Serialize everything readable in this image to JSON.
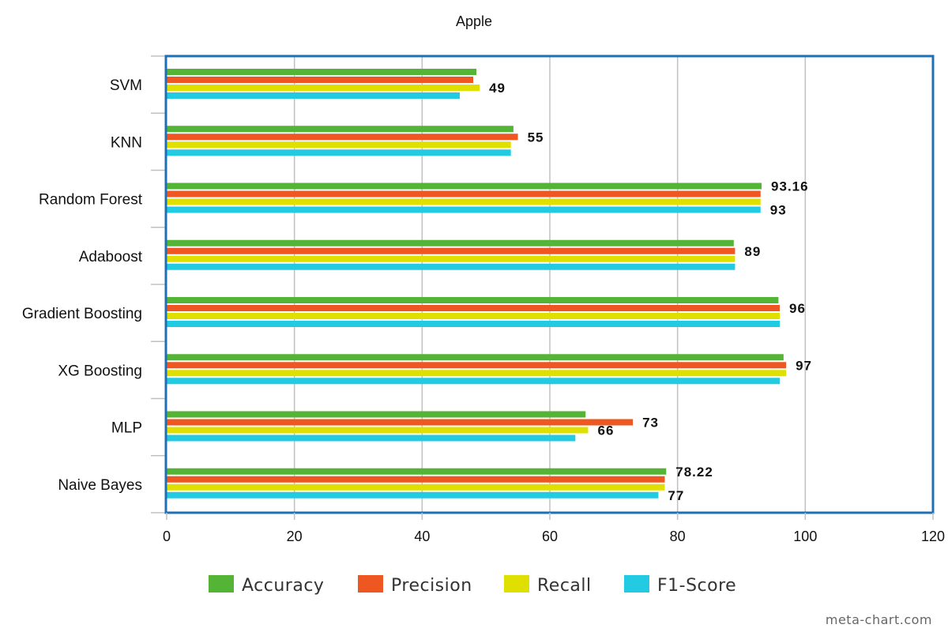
{
  "chart_data": {
    "type": "bar",
    "orientation": "horizontal",
    "title": "Apple",
    "categories": [
      "SVM",
      "KNN",
      "Random Forest",
      "Adaboost",
      "Gradient Boosting",
      "XG Boosting",
      "MLP",
      "Naive Bayes"
    ],
    "series": [
      {
        "name": "Accuracy",
        "color": "#54b435",
        "values": [
          48.5,
          54.3,
          93.16,
          88.8,
          95.8,
          96.6,
          65.6,
          78.22
        ]
      },
      {
        "name": "Precision",
        "color": "#ee5622",
        "values": [
          48.0,
          55.0,
          93.0,
          89.0,
          96.0,
          97.0,
          73.0,
          78.0
        ]
      },
      {
        "name": "Recall",
        "color": "#dfe000",
        "values": [
          49.0,
          53.9,
          93.0,
          89.0,
          96.0,
          97.0,
          66.0,
          78.0
        ]
      },
      {
        "name": "F1-Score",
        "color": "#22cbe2",
        "values": [
          45.9,
          53.9,
          93.0,
          89.0,
          96.0,
          96.0,
          64.0,
          77.0
        ]
      }
    ],
    "data_labels": [
      {
        "category": "SVM",
        "series": "Recall",
        "text": "49"
      },
      {
        "category": "KNN",
        "series": "Precision",
        "text": "55"
      },
      {
        "category": "Random Forest",
        "series": "Accuracy",
        "text": "93.16"
      },
      {
        "category": "Random Forest",
        "series": "F1-Score",
        "text": "93"
      },
      {
        "category": "Adaboost",
        "series": "Precision",
        "text": "89"
      },
      {
        "category": "Gradient Boosting",
        "series": "Precision",
        "text": "96"
      },
      {
        "category": "XG Boosting",
        "series": "Precision",
        "text": "97"
      },
      {
        "category": "MLP",
        "series": "Precision",
        "text": "73"
      },
      {
        "category": "MLP",
        "series": "Recall",
        "text": "66"
      },
      {
        "category": "Naive Bayes",
        "series": "Accuracy",
        "text": "78.22"
      },
      {
        "category": "Naive Bayes",
        "series": "F1-Score",
        "text": "77"
      }
    ],
    "xlim": [
      0,
      120
    ],
    "x_ticks": [
      0,
      20,
      40,
      60,
      80,
      100,
      120
    ],
    "grid": true,
    "legend_position": "bottom",
    "frame_color": "#1f6fb4",
    "grid_color": "#c0c0c0"
  },
  "watermark": "meta-chart.com"
}
